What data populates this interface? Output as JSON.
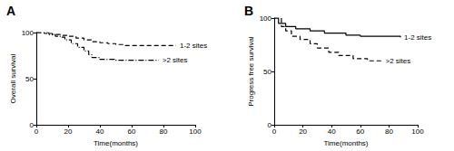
{
  "chart_data": [
    {
      "type": "line",
      "title": "A",
      "x_label": "Time(months)",
      "y_label": "Overall survival",
      "xlim": [
        0,
        100
      ],
      "xticks": [
        0,
        20,
        40,
        60,
        80,
        100
      ],
      "ylim": [
        0,
        100
      ],
      "yticks": [
        0,
        50,
        100
      ],
      "grid": false,
      "series": [
        {
          "name": "1-2 sites",
          "color": "#000000",
          "line_style": "dashed",
          "x": [
            0,
            5,
            10,
            15,
            20,
            25,
            30,
            35,
            40,
            45,
            50,
            55,
            60,
            70,
            88
          ],
          "values": [
            100,
            99,
            98,
            97,
            96,
            94,
            92,
            90,
            89,
            88,
            87,
            86,
            86,
            86,
            86
          ]
        },
        {
          "name": ">2 sites",
          "color": "#000000",
          "line_style": "dashdot",
          "x": [
            0,
            8,
            12,
            15,
            18,
            22,
            26,
            30,
            33,
            35,
            40,
            50,
            60,
            77
          ],
          "values": [
            100,
            98,
            96,
            95,
            92,
            88,
            84,
            80,
            76,
            73,
            71,
            70,
            70,
            70
          ]
        }
      ]
    },
    {
      "type": "line",
      "title": "B",
      "x_label": "Time(months)",
      "y_label": "Progress free survival",
      "xlim": [
        0,
        100
      ],
      "xticks": [
        0,
        20,
        40,
        60,
        80,
        100
      ],
      "ylim": [
        0,
        100
      ],
      "yticks": [
        0,
        50,
        100
      ],
      "grid": false,
      "series": [
        {
          "name": "1-2 sites",
          "color": "#000000",
          "line_style": "solid",
          "x": [
            0,
            3,
            8,
            15,
            25,
            35,
            50,
            60,
            88
          ],
          "values": [
            100,
            95,
            92,
            90,
            88,
            86,
            84,
            83,
            82
          ]
        },
        {
          "name": ">2 sites",
          "color": "#000000",
          "line_style": "dashed",
          "x": [
            0,
            5,
            8,
            12,
            18,
            25,
            30,
            38,
            45,
            55,
            65,
            75
          ],
          "values": [
            100,
            92,
            88,
            83,
            80,
            76,
            72,
            68,
            65,
            62,
            60,
            60
          ]
        }
      ]
    }
  ]
}
